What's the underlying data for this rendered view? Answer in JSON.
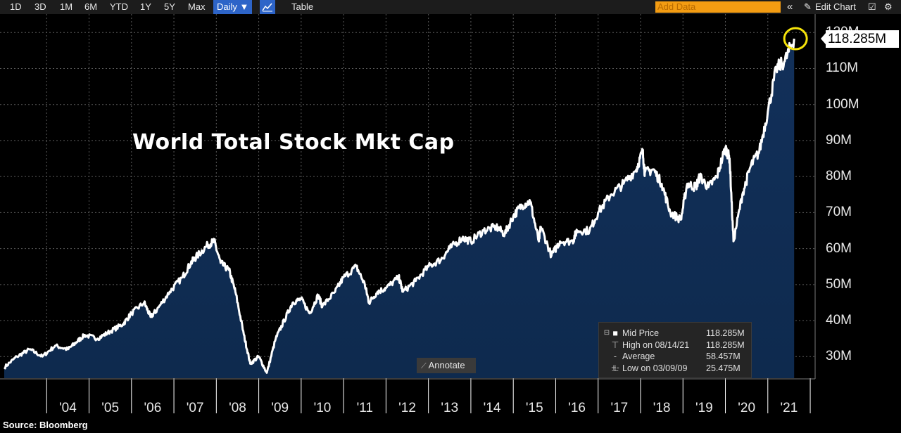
{
  "toolbar": {
    "ranges": [
      "1D",
      "3D",
      "1M",
      "6M",
      "YTD",
      "1Y",
      "5Y",
      "Max"
    ],
    "frequency": "Daily ▼",
    "table_label": "Table",
    "add_data_placeholder": "Add Data",
    "collapse_glyph": "«",
    "edit_chart_label": "Edit Chart"
  },
  "chart_data": {
    "type": "area",
    "title": "World Total Stock Mkt Cap",
    "unit": "M",
    "ylim": [
      24,
      122
    ],
    "yticks": [
      30,
      40,
      50,
      60,
      70,
      80,
      90,
      100,
      110,
      120
    ],
    "ytick_labels": [
      "30M",
      "40M",
      "50M",
      "60M",
      "70M",
      "80M",
      "90M",
      "100M",
      "110M",
      "120M"
    ],
    "xlim": [
      2003.0,
      2021.8
    ],
    "xtick_labels": [
      "'04",
      "'05",
      "'06",
      "'07",
      "'08",
      "'09",
      "'10",
      "'11",
      "'12",
      "'13",
      "'14",
      "'15",
      "'16",
      "'17",
      "'18",
      "'19",
      "'20",
      "'21"
    ],
    "grid": true,
    "series": [
      {
        "name": "Mid Price",
        "color": "#ffffff",
        "x": [
          2003.0,
          2003.3,
          2003.6,
          2003.9,
          2004.2,
          2004.5,
          2004.7,
          2004.9,
          2005.2,
          2005.5,
          2005.8,
          2006.0,
          2006.3,
          2006.45,
          2006.6,
          2006.9,
          2007.2,
          2007.4,
          2007.55,
          2007.8,
          2007.95,
          2008.1,
          2008.3,
          2008.45,
          2008.65,
          2008.8,
          2009.0,
          2009.19,
          2009.4,
          2009.6,
          2009.8,
          2010.0,
          2010.2,
          2010.4,
          2010.5,
          2010.8,
          2011.0,
          2011.3,
          2011.5,
          2011.6,
          2011.8,
          2012.0,
          2012.3,
          2012.4,
          2012.7,
          2013.0,
          2013.3,
          2013.5,
          2013.8,
          2014.0,
          2014.3,
          2014.6,
          2014.8,
          2015.0,
          2015.2,
          2015.4,
          2015.6,
          2015.65,
          2015.9,
          2016.1,
          2016.4,
          2016.5,
          2016.8,
          2017.0,
          2017.3,
          2017.6,
          2017.9,
          2018.05,
          2018.1,
          2018.3,
          2018.5,
          2018.7,
          2018.95,
          2019.1,
          2019.3,
          2019.4,
          2019.6,
          2019.8,
          2020.0,
          2020.1,
          2020.19,
          2020.4,
          2020.6,
          2020.8,
          2021.0,
          2021.2,
          2021.4,
          2021.62
        ],
        "values": [
          27,
          30,
          32,
          30,
          33,
          32,
          34,
          36,
          35,
          37,
          39,
          42,
          45,
          41,
          43,
          48,
          52,
          56,
          58,
          61,
          62,
          56,
          54,
          48,
          36,
          28,
          30,
          25.475,
          35,
          40,
          45,
          46,
          42,
          47,
          44,
          48,
          52,
          55,
          50,
          45,
          48,
          49,
          52,
          48,
          51,
          55,
          57,
          60,
          63,
          62,
          65,
          66,
          64,
          69,
          72,
          73,
          62,
          66,
          58,
          62,
          62,
          65,
          65,
          70,
          75,
          78,
          82,
          87,
          81,
          82,
          78,
          70,
          68,
          78,
          77,
          80,
          77,
          80,
          88,
          85,
          62,
          75,
          83,
          87,
          98,
          110,
          112,
          118.285
        ]
      }
    ],
    "last_value_label": "118.285M",
    "legend_placement": "bottom-right",
    "legend": [
      {
        "name": "Mid Price",
        "value": "118.285M"
      },
      {
        "name": "High on 08/14/21",
        "value": "118.285M"
      },
      {
        "name": "Average",
        "value": "58.457M"
      },
      {
        "name": "Low on 03/09/09",
        "value": "25.475M"
      }
    ],
    "highlight_color": "#f5e30a",
    "fill_color": "#0e2a4e"
  },
  "annotate_label": "Annotate",
  "source": "Source: Bloomberg"
}
